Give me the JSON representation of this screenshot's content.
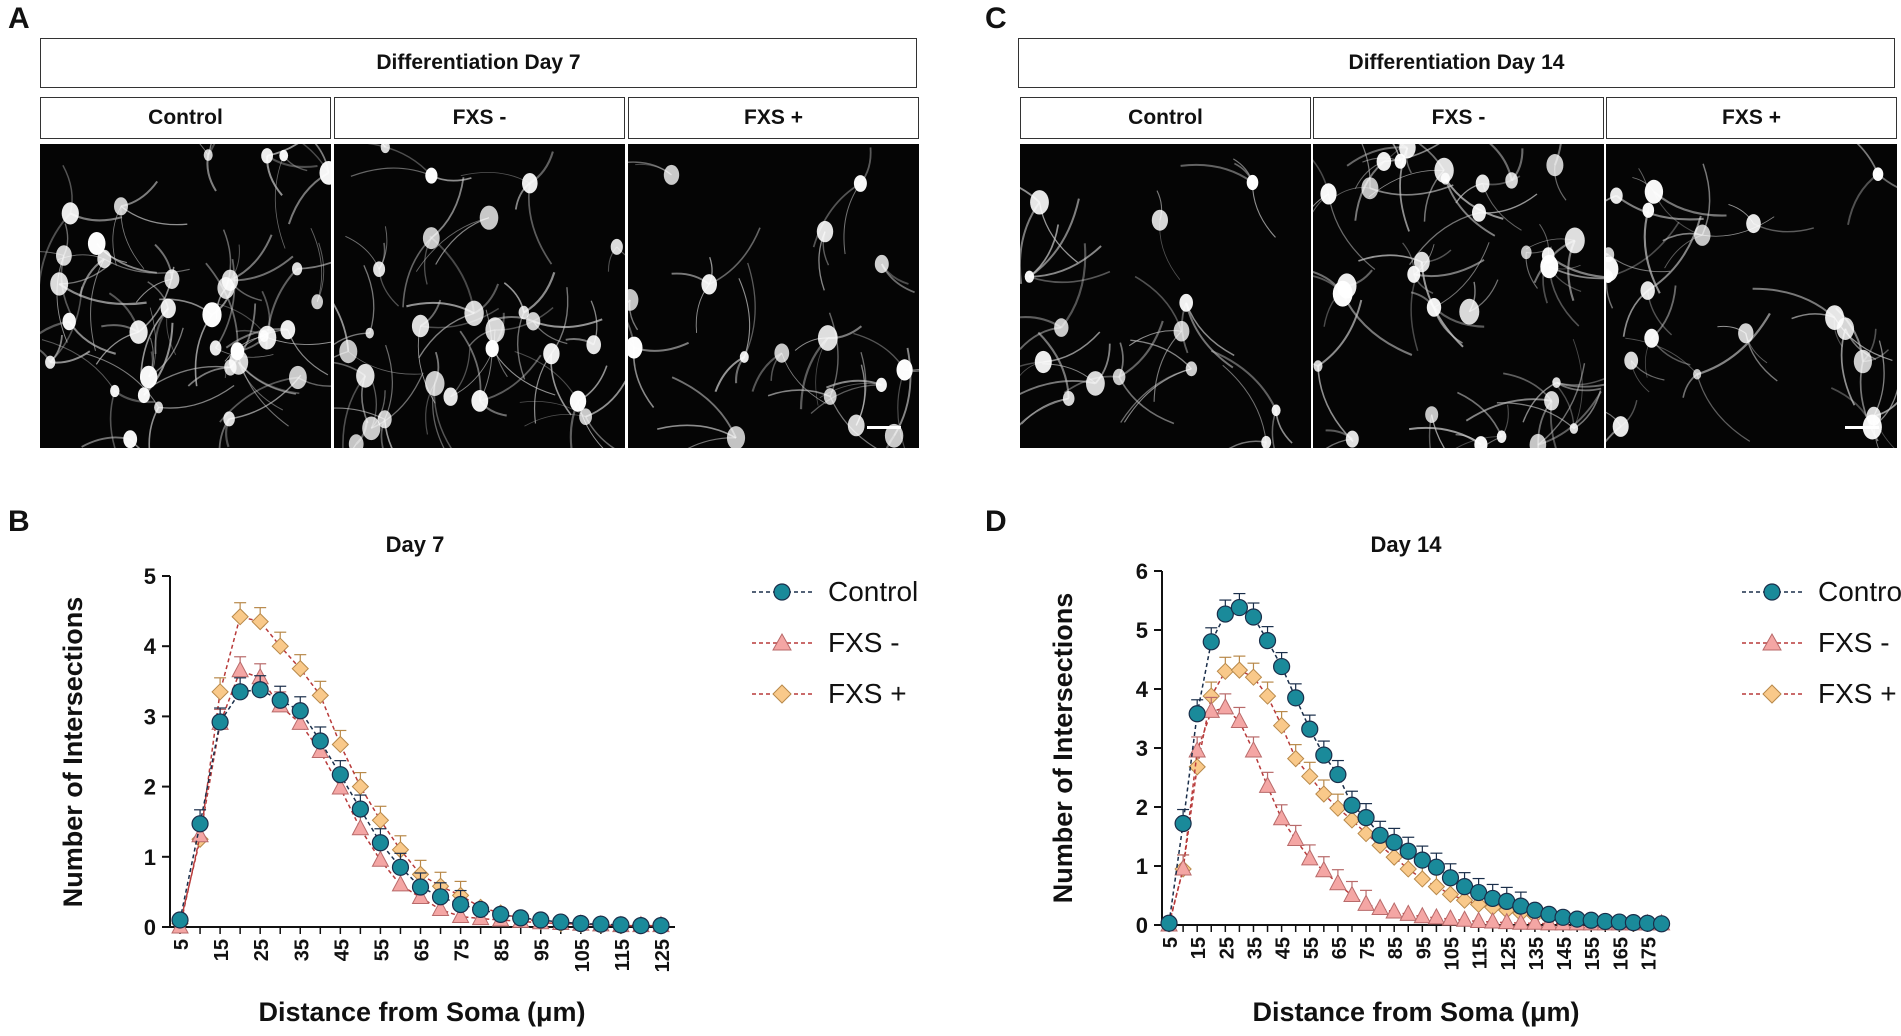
{
  "figure": {
    "panel_labels": [
      "A",
      "B",
      "C",
      "D"
    ],
    "headers": {
      "day7": "Differentiation Day 7",
      "day14": "Differentiation Day 14"
    },
    "conditions": [
      "Control",
      "FXS -",
      "FXS +"
    ],
    "image_descriptions_alt": "Fluorescent micrographs of differentiated neurons"
  },
  "colors": {
    "control": "#1a8a9a",
    "fxs_minus": "#f4a6a4",
    "fxs_plus": "#f9c98a",
    "control_line": "#1a2e4a",
    "fxs_line": "#b83a3a",
    "axis": "#111111"
  },
  "chart_data": [
    {
      "type": "line",
      "title": "Day 7",
      "xlabel": "Distance from Soma (μm)",
      "ylabel": "Number of Intersections",
      "ylim": [
        0,
        5
      ],
      "yticks": [
        0,
        1,
        2,
        3,
        4,
        5
      ],
      "xticks": [
        5,
        15,
        25,
        35,
        45,
        55,
        65,
        75,
        85,
        95,
        105,
        115,
        125
      ],
      "x": [
        5,
        10,
        15,
        20,
        25,
        30,
        35,
        40,
        45,
        50,
        55,
        60,
        65,
        70,
        75,
        80,
        85,
        90,
        95,
        100,
        105,
        110,
        115,
        120,
        125
      ],
      "series": [
        {
          "name": "Control",
          "marker": "circle",
          "values": [
            0.1,
            1.47,
            2.92,
            3.35,
            3.38,
            3.23,
            3.08,
            2.65,
            2.17,
            1.68,
            1.2,
            0.85,
            0.57,
            0.43,
            0.32,
            0.25,
            0.18,
            0.13,
            0.1,
            0.07,
            0.05,
            0.04,
            0.03,
            0.02,
            0.02
          ]
        },
        {
          "name": "FXS -",
          "marker": "triangle",
          "values": [
            0.0,
            1.3,
            2.9,
            3.65,
            3.55,
            3.15,
            2.9,
            2.5,
            1.98,
            1.4,
            0.95,
            0.6,
            0.42,
            0.25,
            0.15,
            0.12,
            0.1,
            0.08,
            0.06,
            0.05,
            0.04,
            0.03,
            0.02,
            0.02,
            0.02
          ]
        },
        {
          "name": "FXS +",
          "marker": "diamond",
          "values": [
            0.05,
            1.25,
            3.35,
            4.42,
            4.35,
            4.0,
            3.68,
            3.3,
            2.6,
            2.0,
            1.52,
            1.1,
            0.75,
            0.58,
            0.45,
            0.28,
            0.2,
            0.12,
            0.08,
            0.05,
            0.04,
            0.03,
            0.02,
            0.02,
            0.02
          ]
        }
      ],
      "legend": "right"
    },
    {
      "type": "line",
      "title": "Day 14",
      "xlabel": "Distance from Soma (μm)",
      "ylabel": "Number of Intersections",
      "ylim": [
        0,
        6
      ],
      "yticks": [
        0,
        1,
        2,
        3,
        4,
        5,
        6
      ],
      "xticks": [
        5,
        15,
        25,
        35,
        45,
        55,
        65,
        75,
        85,
        95,
        105,
        115,
        125,
        135,
        145,
        155,
        165,
        175
      ],
      "x": [
        5,
        10,
        15,
        20,
        25,
        30,
        35,
        40,
        45,
        50,
        55,
        60,
        65,
        70,
        75,
        80,
        85,
        90,
        95,
        100,
        105,
        110,
        115,
        120,
        125,
        130,
        135,
        140,
        145,
        150,
        155,
        160,
        165,
        170,
        175,
        180
      ],
      "series": [
        {
          "name": "Control",
          "marker": "circle",
          "values": [
            0.03,
            1.72,
            3.58,
            4.8,
            5.27,
            5.38,
            5.22,
            4.82,
            4.38,
            3.85,
            3.32,
            2.88,
            2.55,
            2.03,
            1.82,
            1.52,
            1.4,
            1.25,
            1.1,
            0.98,
            0.8,
            0.65,
            0.55,
            0.45,
            0.4,
            0.32,
            0.25,
            0.18,
            0.13,
            0.1,
            0.08,
            0.06,
            0.05,
            0.04,
            0.03,
            0.02
          ]
        },
        {
          "name": "FXS -",
          "marker": "triangle",
          "values": [
            0.0,
            0.95,
            2.95,
            3.62,
            3.68,
            3.45,
            2.95,
            2.35,
            1.8,
            1.45,
            1.12,
            0.92,
            0.7,
            0.5,
            0.35,
            0.28,
            0.22,
            0.18,
            0.14,
            0.12,
            0.1,
            0.08,
            0.06,
            0.05,
            0.04,
            0.03,
            0.03,
            0.02,
            0.02,
            0.02,
            0.02,
            0.02,
            0.02,
            0.02,
            0.02,
            0.02
          ]
        },
        {
          "name": "FXS +",
          "marker": "diamond",
          "values": [
            0.02,
            0.95,
            2.68,
            3.88,
            4.3,
            4.32,
            4.2,
            3.88,
            3.38,
            2.82,
            2.52,
            2.22,
            1.98,
            1.78,
            1.55,
            1.35,
            1.15,
            0.95,
            0.78,
            0.65,
            0.52,
            0.42,
            0.35,
            0.3,
            0.25,
            0.2,
            0.16,
            0.12,
            0.1,
            0.08,
            0.06,
            0.05,
            0.04,
            0.03,
            0.03,
            0.02
          ]
        }
      ],
      "legend": "right"
    }
  ]
}
